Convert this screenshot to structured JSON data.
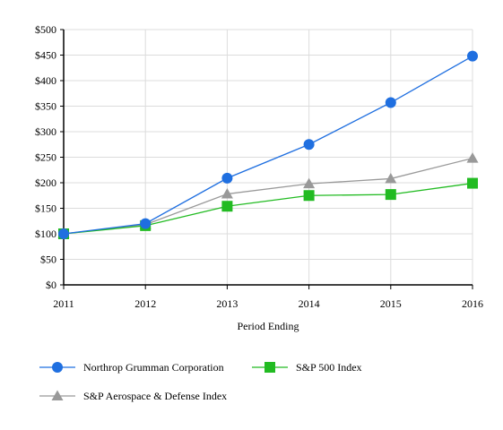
{
  "chart_data": {
    "type": "line",
    "title": "",
    "xlabel": "Period Ending",
    "ylabel": "",
    "categories": [
      "2011",
      "2012",
      "2013",
      "2014",
      "2015",
      "2016"
    ],
    "ylim": [
      0,
      500
    ],
    "yticks": [
      0,
      50,
      100,
      150,
      200,
      250,
      300,
      350,
      400,
      450,
      500
    ],
    "ytick_labels": [
      "$0",
      "$50",
      "$100",
      "$150",
      "$200",
      "$250",
      "$300",
      "$350",
      "$400",
      "$450",
      "$500"
    ],
    "grid": true,
    "legend_position": "bottom",
    "series": [
      {
        "name": "Northrop Grumman Corporation",
        "marker": "circle",
        "color": "#1f6fe0",
        "values": [
          100,
          120,
          209,
          275,
          357,
          448
        ]
      },
      {
        "name": "S&P 500 Index",
        "marker": "square",
        "color": "#22bb22",
        "values": [
          100,
          116,
          154,
          175,
          177,
          199
        ]
      },
      {
        "name": "S&P Aerospace & Defense Index",
        "marker": "triangle",
        "color": "#999999",
        "values": [
          100,
          118,
          178,
          198,
          208,
          248
        ]
      }
    ]
  }
}
